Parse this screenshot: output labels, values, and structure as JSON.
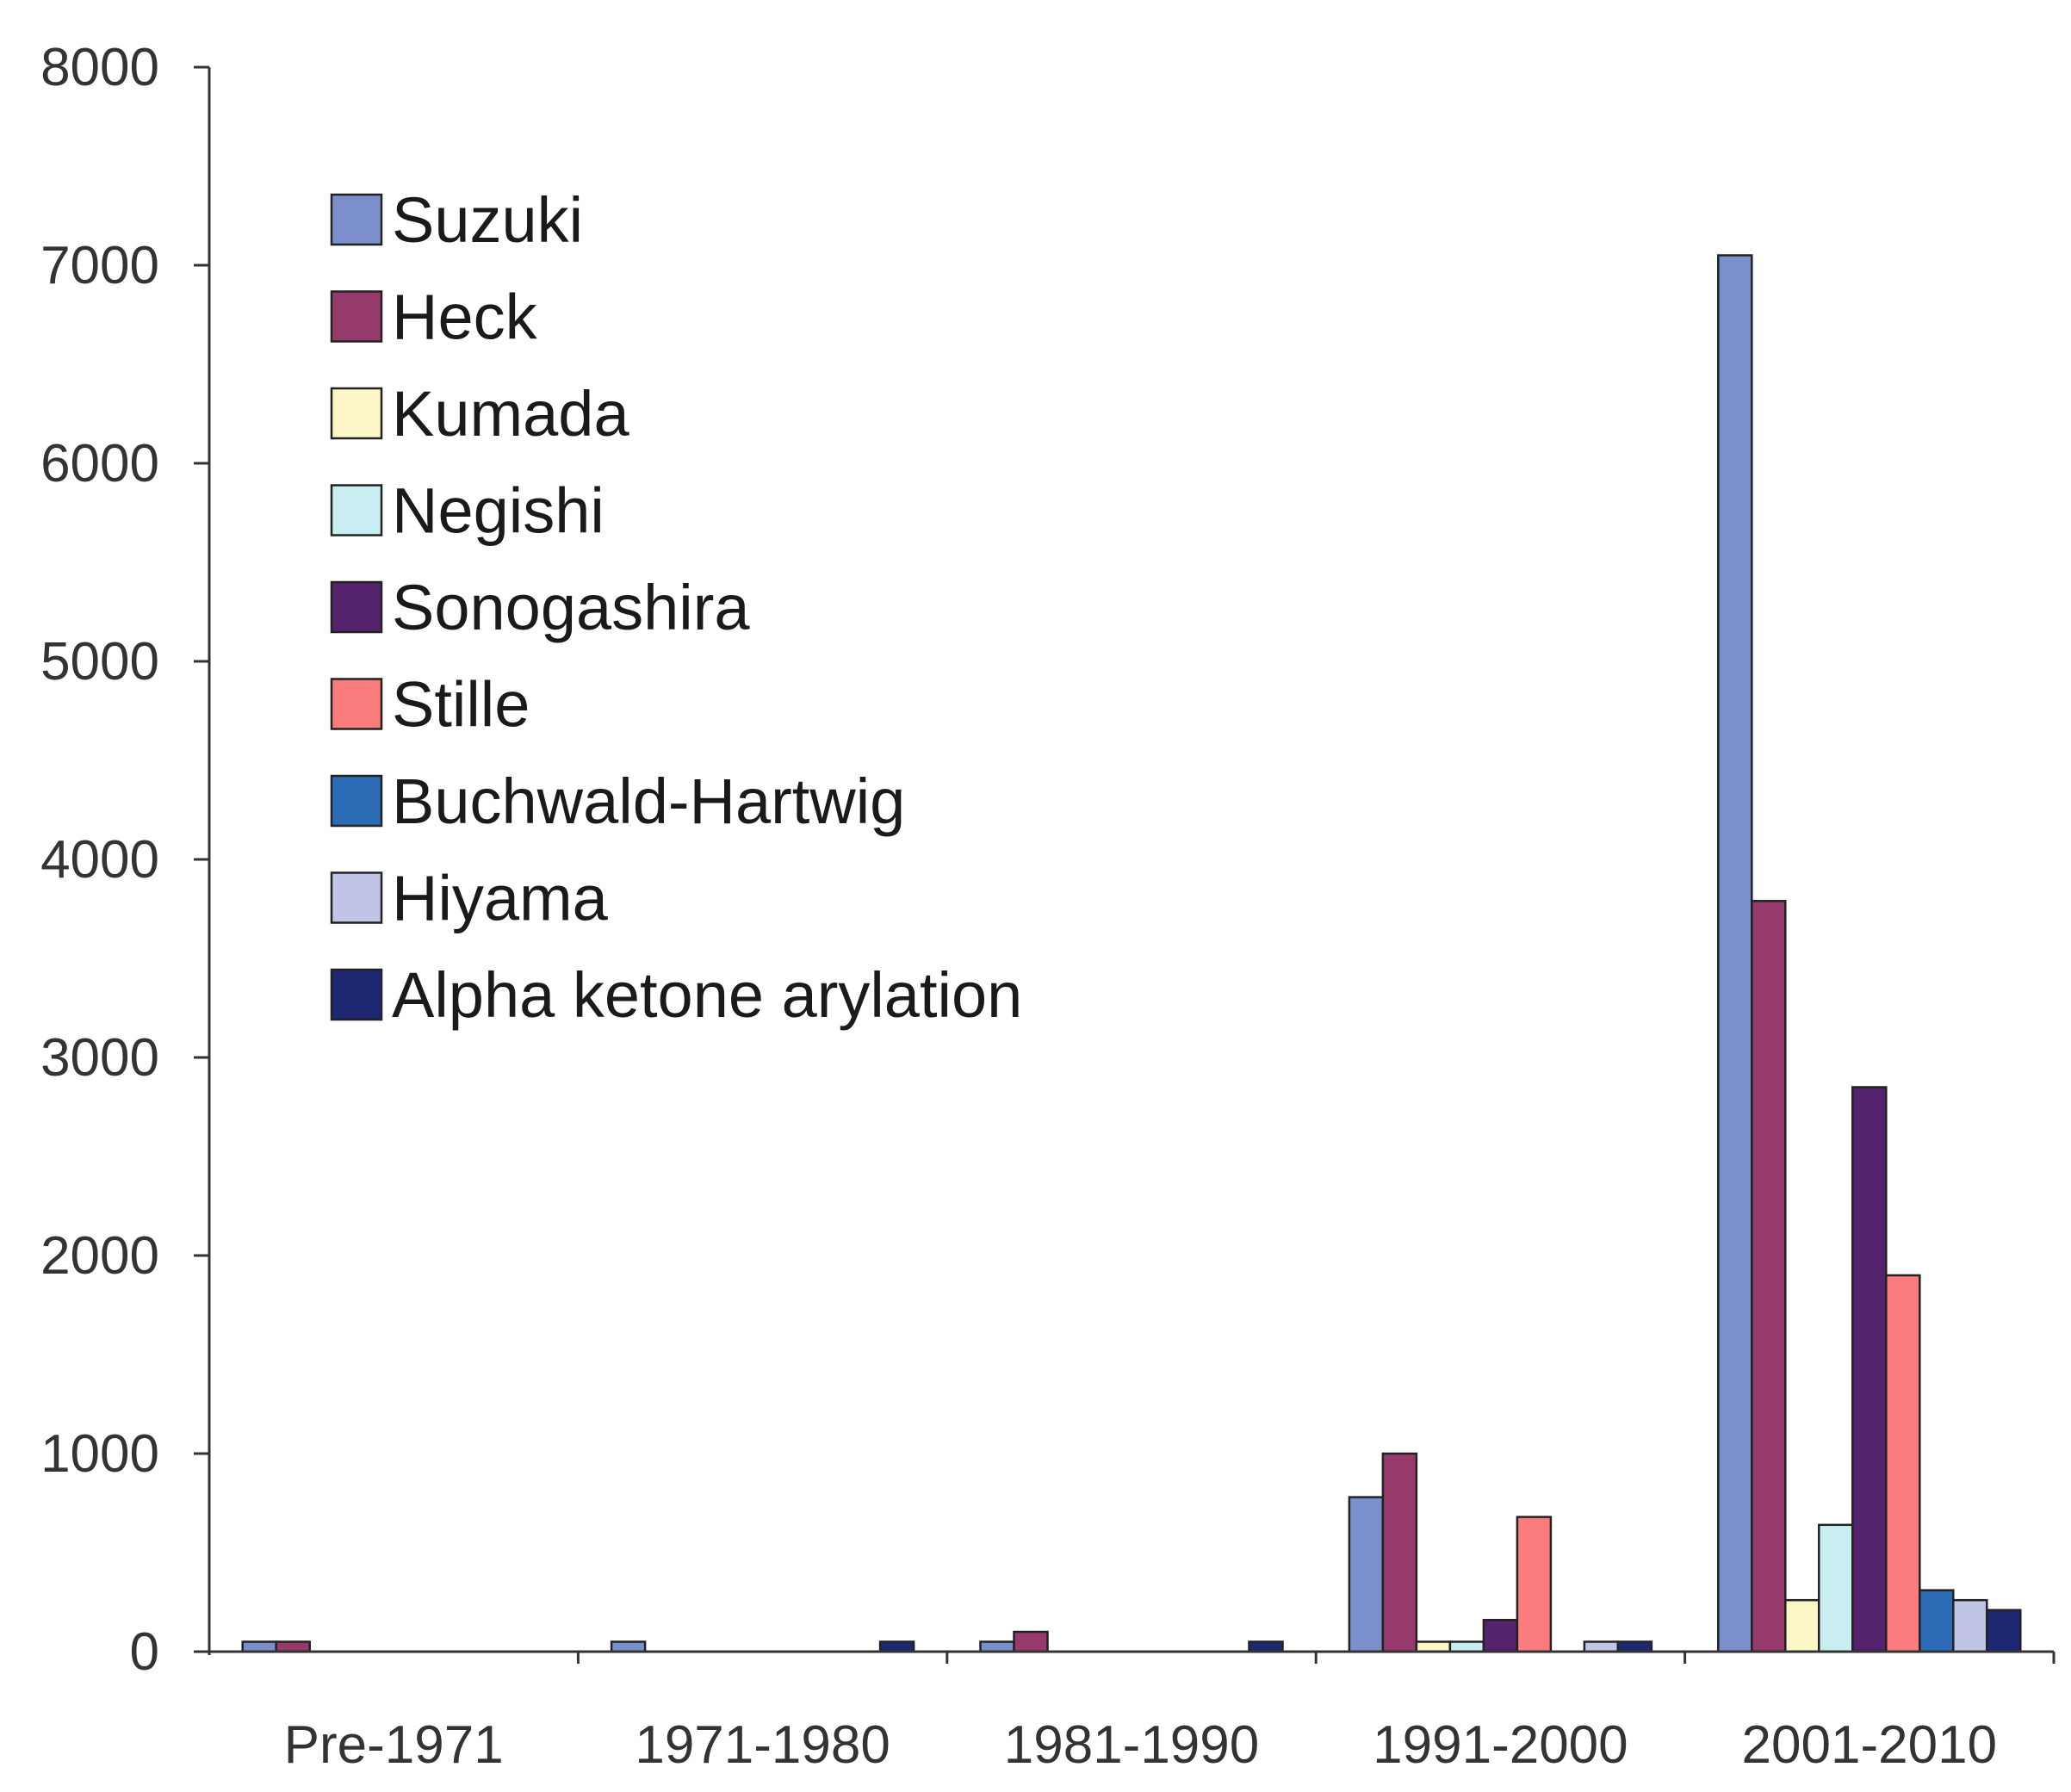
{
  "chart_data": {
    "type": "bar",
    "title": "",
    "xlabel": "",
    "ylabel": "",
    "ylim": [
      0,
      8000
    ],
    "yticks": [
      0,
      1000,
      2000,
      3000,
      4000,
      5000,
      6000,
      7000,
      8000
    ],
    "grid": false,
    "legend_position": "top-left",
    "categories": [
      "Pre-1971",
      "1971-1980",
      "1981-1990",
      "1991-2000",
      "2001-2010"
    ],
    "series": [
      {
        "name": "Suzuki",
        "color": "#7b8fcc",
        "values": [
          50,
          50,
          50,
          780,
          7050
        ]
      },
      {
        "name": "Heck",
        "color": "#953a6b",
        "values": [
          50,
          0,
          100,
          1000,
          3790
        ]
      },
      {
        "name": "Kumada",
        "color": "#fdf6c6",
        "values": [
          0,
          0,
          0,
          50,
          260
        ]
      },
      {
        "name": "Negishi",
        "color": "#c9eef2",
        "values": [
          0,
          0,
          0,
          50,
          640
        ]
      },
      {
        "name": "Sonogashira",
        "color": "#55226e",
        "values": [
          0,
          0,
          0,
          160,
          2850
        ]
      },
      {
        "name": "Stille",
        "color": "#fa7c7c",
        "values": [
          0,
          0,
          0,
          680,
          1900
        ]
      },
      {
        "name": "Buchwald-Hartwig",
        "color": "#2b6ab5",
        "values": [
          0,
          0,
          0,
          0,
          310
        ]
      },
      {
        "name": "Hiyama",
        "color": "#c0c4e6",
        "values": [
          0,
          0,
          0,
          50,
          260
        ]
      },
      {
        "name": "Alpha ketone arylation",
        "color": "#1e2872",
        "values": [
          0,
          50,
          50,
          50,
          210
        ]
      }
    ]
  }
}
